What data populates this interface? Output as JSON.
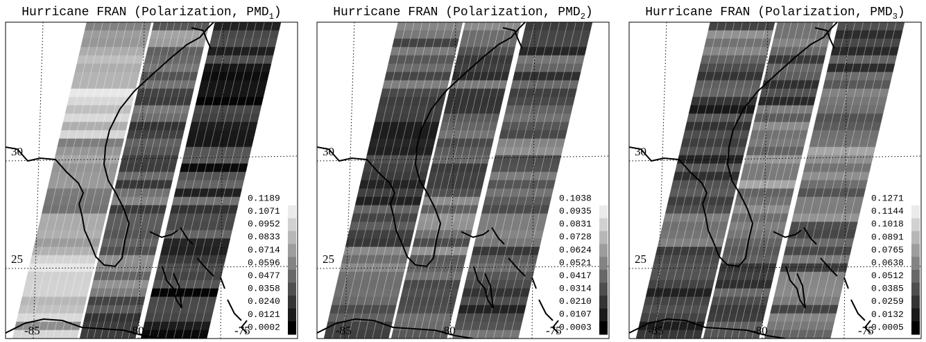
{
  "panels": [
    {
      "title": {
        "prefix": "Hurricane FRAN (Polarization, PMD",
        "sub": "1",
        "suffix": ")"
      },
      "legend": [
        0.1189,
        0.1071,
        0.0952,
        0.0833,
        0.0714,
        0.0596,
        0.0477,
        0.0358,
        {
          "value": 0.024,
          "label": "0.0240"
        },
        0.0121,
        0.0002
      ],
      "lat_labels": [
        30,
        25
      ],
      "lon_labels": [
        -85,
        -80,
        -75
      ]
    },
    {
      "title": {
        "prefix": "Hurricane FRAN (Polarization, PMD",
        "sub": "2",
        "suffix": ")"
      },
      "legend": [
        0.1038,
        0.0935,
        0.0831,
        0.0728,
        0.0624,
        0.0521,
        0.0417,
        0.0314,
        {
          "value": 0.021,
          "label": "0.0210"
        },
        0.0107,
        0.0003
      ],
      "lat_labels": [
        30,
        25
      ],
      "lon_labels": [
        -85,
        -80,
        -75
      ]
    },
    {
      "title": {
        "prefix": "Hurricane FRAN (Polarization, PMD",
        "sub": "3",
        "suffix": ")"
      },
      "legend": [
        0.1271,
        0.1144,
        0.1018,
        0.0891,
        0.0765,
        0.0638,
        0.0512,
        0.0385,
        0.0259,
        0.0132,
        0.0005
      ],
      "lat_labels": [
        30,
        25
      ],
      "lon_labels": [
        -85,
        -80,
        -75
      ]
    }
  ]
}
